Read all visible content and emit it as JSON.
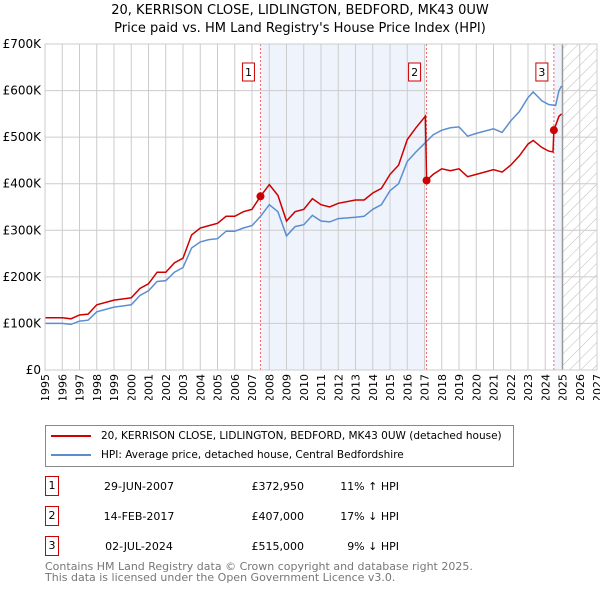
{
  "title": "20, KERRISON CLOSE, LIDLINGTON, BEDFORD, MK43 0UW",
  "subtitle": "Price paid vs. HM Land Registry's House Price Index (HPI)",
  "chart_data": {
    "type": "line",
    "xlim": [
      1995,
      2027
    ],
    "ylim": [
      0,
      700000
    ],
    "x_ticks": [
      "1995",
      "1996",
      "1997",
      "1998",
      "1999",
      "2000",
      "2001",
      "2002",
      "2003",
      "2004",
      "2005",
      "2006",
      "2007",
      "2008",
      "2009",
      "2010",
      "2011",
      "2012",
      "2013",
      "2014",
      "2015",
      "2016",
      "2017",
      "2018",
      "2019",
      "2020",
      "2021",
      "2022",
      "2023",
      "2024",
      "2025",
      "2026",
      "2027"
    ],
    "y_ticks": [
      {
        "v": 0,
        "label": "£0"
      },
      {
        "v": 100000,
        "label": "£100K"
      },
      {
        "v": 200000,
        "label": "£200K"
      },
      {
        "v": 300000,
        "label": "£300K"
      },
      {
        "v": 400000,
        "label": "£400K"
      },
      {
        "v": 500000,
        "label": "£500K"
      },
      {
        "v": 600000,
        "label": "£600K"
      },
      {
        "v": 700000,
        "label": "£700K"
      }
    ],
    "series": [
      {
        "name": "20, KERRISON CLOSE, LIDLINGTON, BEDFORD, MK43 0UW (detached house)",
        "color": "#cc0000",
        "points": [
          [
            1995,
            112
          ],
          [
            1996,
            112
          ],
          [
            1996.5,
            110
          ],
          [
            1997,
            118
          ],
          [
            1997.5,
            120
          ],
          [
            1998,
            140
          ],
          [
            1999,
            150
          ],
          [
            2000,
            155
          ],
          [
            2000.5,
            175
          ],
          [
            2001,
            185
          ],
          [
            2001.5,
            210
          ],
          [
            2002,
            210
          ],
          [
            2002.5,
            230
          ],
          [
            2003,
            240
          ],
          [
            2003.5,
            290
          ],
          [
            2004,
            305
          ],
          [
            2004.5,
            310
          ],
          [
            2005,
            315
          ],
          [
            2005.5,
            330
          ],
          [
            2006,
            330
          ],
          [
            2006.5,
            340
          ],
          [
            2007,
            345
          ],
          [
            2007.49,
            372.95
          ],
          [
            2008,
            398
          ],
          [
            2008.5,
            375
          ],
          [
            2009,
            320
          ],
          [
            2009.5,
            340
          ],
          [
            2010,
            345
          ],
          [
            2010.5,
            368
          ],
          [
            2011,
            355
          ],
          [
            2011.5,
            350
          ],
          [
            2012,
            358
          ],
          [
            2013,
            365
          ],
          [
            2013.5,
            365
          ],
          [
            2014,
            380
          ],
          [
            2014.5,
            390
          ],
          [
            2015,
            420
          ],
          [
            2015.5,
            440
          ],
          [
            2016,
            495
          ],
          [
            2016.5,
            520
          ],
          [
            2017.05,
            545
          ],
          [
            2017.12,
            407
          ],
          [
            2017.5,
            420
          ],
          [
            2018,
            432
          ],
          [
            2018.5,
            428
          ],
          [
            2019,
            432
          ],
          [
            2019.5,
            415
          ],
          [
            2020,
            420
          ],
          [
            2021,
            430
          ],
          [
            2021.5,
            425
          ],
          [
            2022,
            440
          ],
          [
            2022.5,
            460
          ],
          [
            2023,
            485
          ],
          [
            2023.3,
            493
          ],
          [
            2023.8,
            478
          ],
          [
            2024.2,
            470
          ],
          [
            2024.45,
            468
          ],
          [
            2024.5,
            515
          ],
          [
            2024.8,
            545
          ],
          [
            2024.95,
            550
          ]
        ]
      },
      {
        "name": "HPI: Average price, detached house, Central Bedfordshire",
        "color": "#5b8ed1",
        "points": [
          [
            1995,
            100
          ],
          [
            1996,
            100
          ],
          [
            1996.5,
            98
          ],
          [
            1997,
            105
          ],
          [
            1997.5,
            107
          ],
          [
            1998,
            125
          ],
          [
            1999,
            135
          ],
          [
            2000,
            140
          ],
          [
            2000.5,
            160
          ],
          [
            2001,
            170
          ],
          [
            2001.5,
            190
          ],
          [
            2002,
            192
          ],
          [
            2002.5,
            210
          ],
          [
            2003,
            220
          ],
          [
            2003.5,
            262
          ],
          [
            2004,
            275
          ],
          [
            2004.5,
            280
          ],
          [
            2005,
            282
          ],
          [
            2005.5,
            298
          ],
          [
            2006,
            298
          ],
          [
            2006.5,
            305
          ],
          [
            2007,
            310
          ],
          [
            2007.5,
            330
          ],
          [
            2008,
            355
          ],
          [
            2008.5,
            340
          ],
          [
            2009,
            288
          ],
          [
            2009.5,
            308
          ],
          [
            2010,
            312
          ],
          [
            2010.5,
            332
          ],
          [
            2011,
            320
          ],
          [
            2011.5,
            318
          ],
          [
            2012,
            325
          ],
          [
            2013,
            328
          ],
          [
            2013.5,
            330
          ],
          [
            2014,
            345
          ],
          [
            2014.5,
            355
          ],
          [
            2015,
            385
          ],
          [
            2015.5,
            400
          ],
          [
            2016,
            448
          ],
          [
            2016.5,
            468
          ],
          [
            2017.1,
            490
          ],
          [
            2017.5,
            505
          ],
          [
            2018,
            515
          ],
          [
            2018.5,
            520
          ],
          [
            2019,
            522
          ],
          [
            2019.5,
            502
          ],
          [
            2020,
            508
          ],
          [
            2021,
            518
          ],
          [
            2021.5,
            510
          ],
          [
            2022,
            535
          ],
          [
            2022.5,
            555
          ],
          [
            2023,
            585
          ],
          [
            2023.3,
            597
          ],
          [
            2023.8,
            578
          ],
          [
            2024.2,
            570
          ],
          [
            2024.6,
            568
          ],
          [
            2024.8,
            600
          ],
          [
            2024.95,
            610
          ]
        ]
      }
    ],
    "units": "£K",
    "annotations": [
      {
        "label": "1",
        "x": 2007.49
      },
      {
        "label": "2",
        "x": 2017.12
      },
      {
        "label": "3",
        "x": 2024.5
      }
    ]
  },
  "legend": [
    "20, KERRISON CLOSE, LIDLINGTON, BEDFORD, MK43 0UW (detached house)",
    "HPI: Average price, detached house, Central Bedfordshire"
  ],
  "sales": [
    {
      "num": "1",
      "date": "29-JUN-2007",
      "price": "£372,950",
      "hpi": "11% ↑ HPI"
    },
    {
      "num": "2",
      "date": "14-FEB-2017",
      "price": "£407,000",
      "hpi": "17% ↓ HPI"
    },
    {
      "num": "3",
      "date": "02-JUL-2024",
      "price": "£515,000",
      "hpi": "9% ↓ HPI"
    }
  ],
  "footer": [
    "Contains HM Land Registry data © Crown copyright and database right 2025.",
    "This data is licensed under the Open Government Licence v3.0."
  ]
}
